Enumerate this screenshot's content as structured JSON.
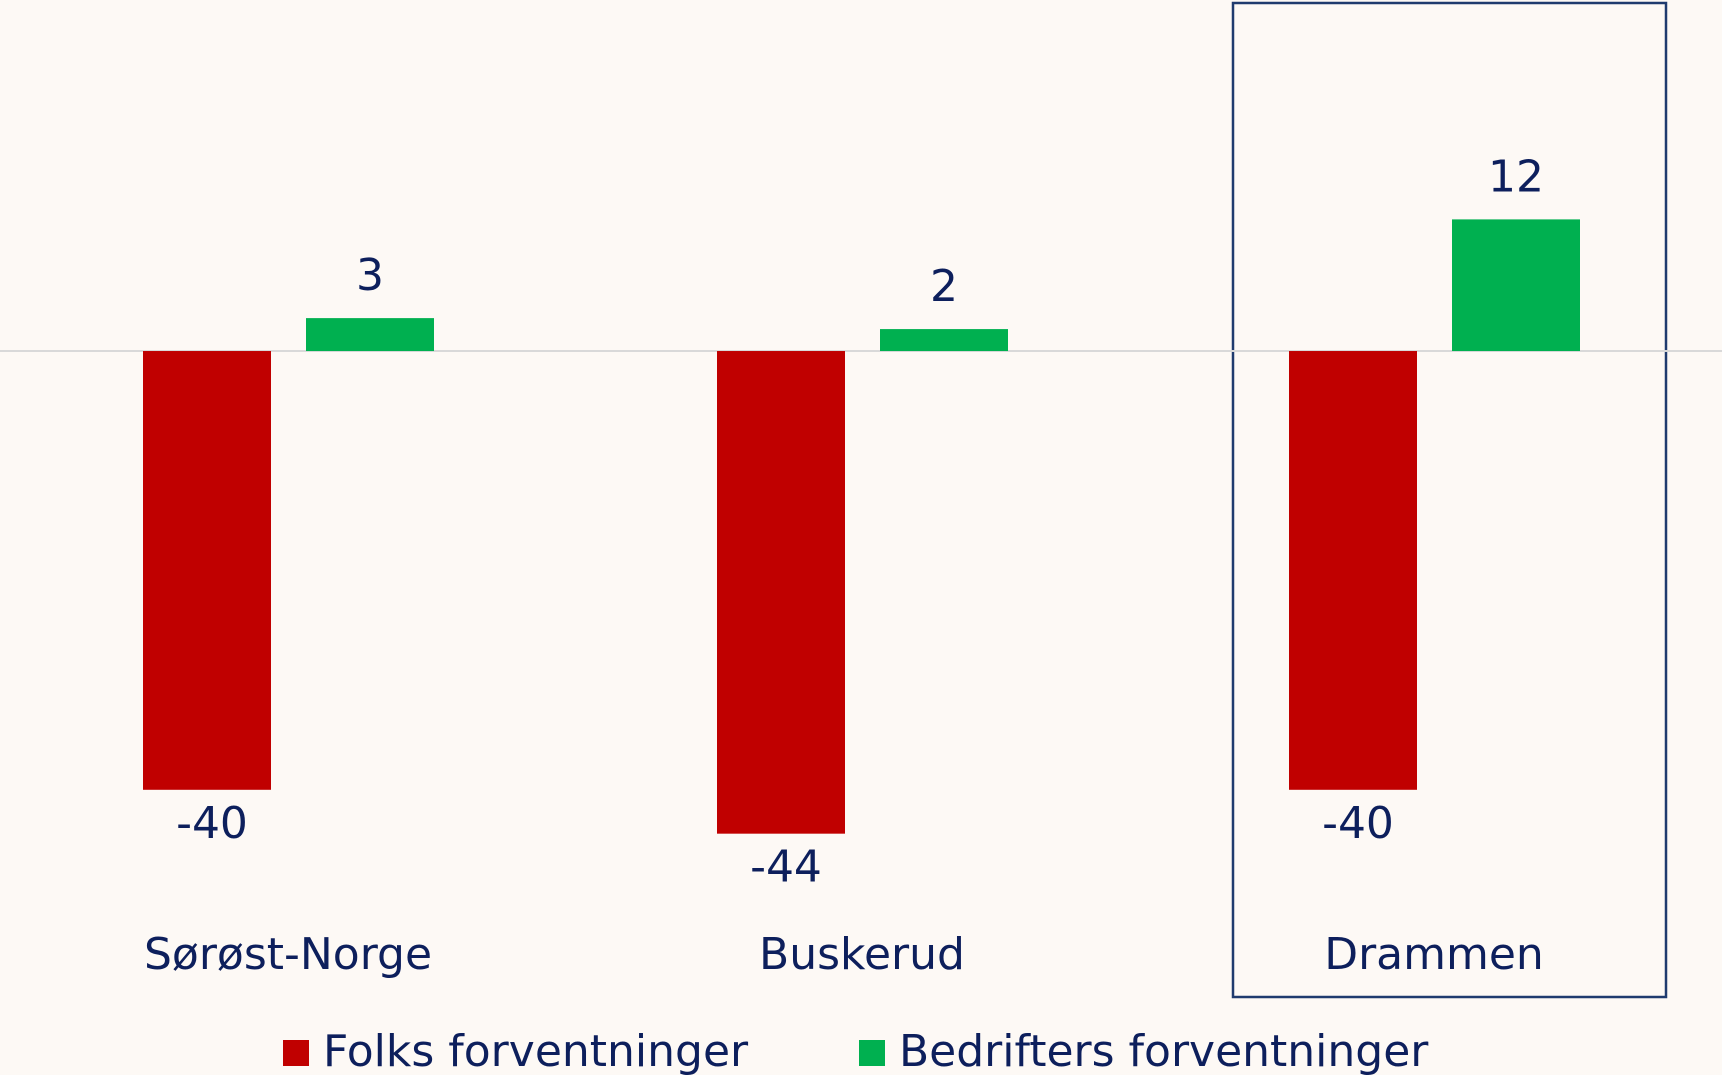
{
  "chart_data": {
    "type": "bar",
    "categories": [
      "Sørøst-Norge",
      "Buskerud",
      "Drammen"
    ],
    "series": [
      {
        "name": "Folks forventninger",
        "color": "#c00000",
        "values": [
          -40,
          -44,
          -40
        ]
      },
      {
        "name": "Bedrifters forventninger",
        "color": "#00b050",
        "values": [
          3,
          2,
          12
        ]
      }
    ],
    "ylim": [
      -66,
      32
    ]
  }
}
